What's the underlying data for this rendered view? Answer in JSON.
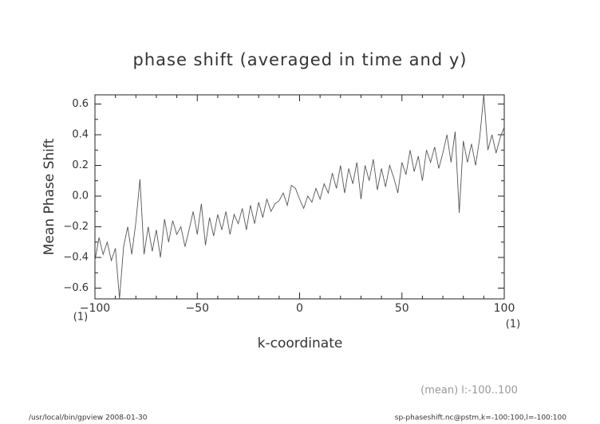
{
  "chart_data": {
    "type": "line",
    "title": "phase shift (averaged in time and y)",
    "x_label": "k-coordinate",
    "y_label": "Mean Phase Shift",
    "x_unit_left": "(1)",
    "x_unit_right": "(1)",
    "annotation": "(mean) l:-100..100",
    "footer_left": "/usr/local/bin/gpview  2008-01-30",
    "footer_right": "sp-phaseshift.nc@pstm,k=-100:100,l=-100:100",
    "xlim": [
      -100,
      100
    ],
    "ylim": [
      -0.67,
      0.66
    ],
    "xticks": [
      {
        "value": -100,
        "label": "−100"
      },
      {
        "value": -50,
        "label": "−50"
      },
      0,
      50,
      100
    ],
    "yticks": [
      {
        "value": -0.6,
        "label": "−0.6"
      },
      {
        "value": -0.4,
        "label": "−0.4"
      },
      {
        "value": -0.2,
        "label": "−0.2"
      },
      {
        "value": 0,
        "label": "0.0"
      },
      0.2,
      0.4,
      0.6
    ],
    "xminorticks": [
      -90,
      -80,
      -70,
      -60,
      -40,
      -30,
      -20,
      -10,
      10,
      20,
      30,
      40,
      60,
      70,
      80,
      90
    ],
    "yminorticks": [
      -0.5,
      -0.3,
      -0.1,
      0.1,
      0.3,
      0.5
    ],
    "color": "#555555",
    "x": [
      -100,
      -98,
      -96,
      -94,
      -92,
      -90,
      -88,
      -86,
      -84,
      -82,
      -80,
      -78,
      -76,
      -74,
      -72,
      -70,
      -68,
      -66,
      -64,
      -62,
      -60,
      -58,
      -56,
      -54,
      -52,
      -50,
      -48,
      -46,
      -44,
      -42,
      -40,
      -38,
      -36,
      -34,
      -32,
      -30,
      -28,
      -26,
      -24,
      -22,
      -20,
      -18,
      -16,
      -14,
      -12,
      -10,
      -8,
      -6,
      -4,
      -2,
      0,
      2,
      4,
      6,
      8,
      10,
      12,
      14,
      16,
      18,
      20,
      22,
      24,
      26,
      28,
      30,
      32,
      34,
      36,
      38,
      40,
      42,
      44,
      46,
      48,
      50,
      52,
      54,
      56,
      58,
      60,
      62,
      64,
      66,
      68,
      70,
      72,
      74,
      76,
      78,
      80,
      82,
      84,
      86,
      88,
      90,
      92,
      94,
      96,
      98,
      100
    ],
    "values": [
      -0.42,
      -0.27,
      -0.38,
      -0.3,
      -0.42,
      -0.34,
      -0.67,
      -0.33,
      -0.2,
      -0.38,
      -0.17,
      0.11,
      -0.38,
      -0.2,
      -0.36,
      -0.22,
      -0.4,
      -0.15,
      -0.3,
      -0.16,
      -0.25,
      -0.2,
      -0.33,
      -0.22,
      -0.1,
      -0.25,
      -0.05,
      -0.32,
      -0.14,
      -0.26,
      -0.12,
      -0.22,
      -0.1,
      -0.25,
      -0.12,
      -0.18,
      -0.08,
      -0.22,
      -0.06,
      -0.18,
      -0.04,
      -0.14,
      -0.02,
      -0.1,
      -0.05,
      -0.03,
      0.02,
      -0.06,
      0.07,
      0.05,
      -0.02,
      -0.08,
      0.0,
      -0.04,
      0.05,
      -0.02,
      0.08,
      0.02,
      0.15,
      0.05,
      0.2,
      0.02,
      0.18,
      0.08,
      0.22,
      -0.02,
      0.2,
      0.1,
      0.24,
      0.04,
      0.18,
      0.06,
      0.2,
      0.12,
      0.02,
      0.22,
      0.14,
      0.3,
      0.16,
      0.26,
      0.1,
      0.3,
      0.22,
      0.32,
      0.18,
      0.28,
      0.4,
      0.22,
      0.42,
      -0.11,
      0.36,
      0.22,
      0.34,
      0.2,
      0.38,
      0.66,
      0.3,
      0.4,
      0.28,
      0.38,
      0.45
    ]
  }
}
